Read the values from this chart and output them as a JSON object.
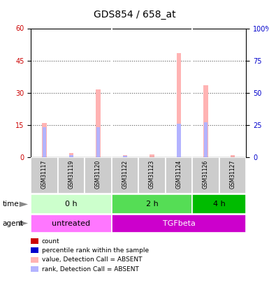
{
  "title": "GDS854 / 658_at",
  "samples": [
    "GSM31117",
    "GSM31119",
    "GSM31120",
    "GSM31122",
    "GSM31123",
    "GSM31124",
    "GSM31126",
    "GSM31127"
  ],
  "absent_value_bars": [
    16.0,
    1.8,
    31.5,
    0.8,
    1.2,
    48.5,
    33.5,
    0.8
  ],
  "absent_rank_bars": [
    23.0,
    1.5,
    23.0,
    0.8,
    0.0,
    26.0,
    27.0,
    0.0
  ],
  "ylim_left": [
    0,
    60
  ],
  "ylim_right": [
    0,
    100
  ],
  "yticks_left": [
    0,
    15,
    30,
    45,
    60
  ],
  "yticks_right": [
    0,
    25,
    50,
    75,
    100
  ],
  "yticklabels_right": [
    "0",
    "25",
    "50",
    "75",
    "100%"
  ],
  "time_groups": [
    {
      "label": "0 h",
      "start": 0,
      "end": 3,
      "color": "#ccffcc"
    },
    {
      "label": "2 h",
      "start": 3,
      "end": 6,
      "color": "#55dd55"
    },
    {
      "label": "4 h",
      "start": 6,
      "end": 8,
      "color": "#00bb00"
    }
  ],
  "agent_groups": [
    {
      "label": "untreated",
      "start": 0,
      "end": 3,
      "color": "#ff77ff"
    },
    {
      "label": "TGFbeta",
      "start": 3,
      "end": 8,
      "color": "#cc00cc"
    }
  ],
  "absent_bar_color": "#ffb3b3",
  "absent_rank_color": "#b3b3ff",
  "count_color": "#cc0000",
  "rank_color": "#0000cc",
  "legend_items": [
    {
      "color": "#cc0000",
      "label": "count"
    },
    {
      "color": "#0000cc",
      "label": "percentile rank within the sample"
    },
    {
      "color": "#ffb3b3",
      "label": "value, Detection Call = ABSENT"
    },
    {
      "color": "#b3b3ff",
      "label": "rank, Detection Call = ABSENT"
    }
  ],
  "bg_color": "#ffffff"
}
